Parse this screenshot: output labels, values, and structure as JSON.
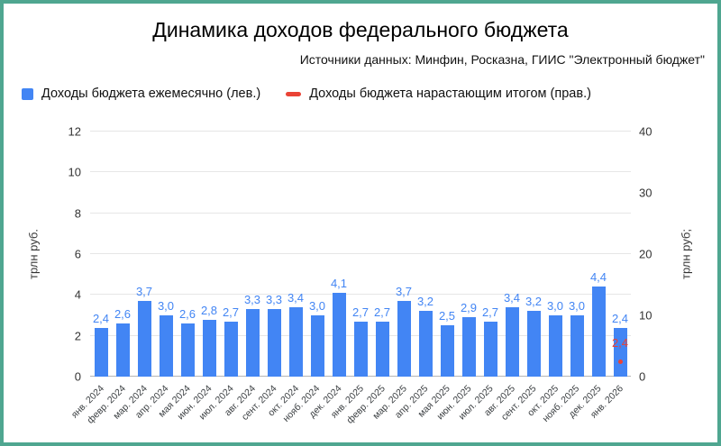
{
  "figure": {
    "border_color": "#4fa690",
    "background": "#ffffff"
  },
  "chart_data": {
    "type": "bar",
    "title": "Динамика доходов федерального бюджета",
    "subtitle": "Источники данных: Минфин, Росказна, ГИИС \"Электронный бюджет\"",
    "categories": [
      "янв. 2024",
      "февр. 2024",
      "мар. 2024",
      "апр. 2024",
      "мая 2024",
      "июн. 2024",
      "июл. 2024",
      "авг. 2024",
      "сент. 2024",
      "окт. 2024",
      "нояб. 2024",
      "дек. 2024",
      "янв. 2025",
      "февр. 2025",
      "мар. 2025",
      "апр. 2025",
      "мая 2025",
      "июн. 2025",
      "июл. 2025",
      "авг. 2025",
      "сент. 2025",
      "окт. 2025",
      "нояб. 2025",
      "дек. 2025",
      "янв. 2026"
    ],
    "series": [
      {
        "name": "Доходы бюджета ежемесячно (лев.)",
        "type": "bar",
        "axis": "left",
        "color": "#4285f4",
        "values": [
          2.4,
          2.6,
          3.7,
          3.0,
          2.6,
          2.8,
          2.7,
          3.3,
          3.3,
          3.4,
          3.0,
          4.1,
          2.7,
          2.7,
          3.7,
          3.2,
          2.5,
          2.9,
          2.7,
          3.4,
          3.2,
          3.0,
          3.0,
          4.4,
          2.4
        ]
      },
      {
        "name": "Доходы бюджета нарастающим итогом (прав.)",
        "type": "line",
        "axis": "right",
        "color": "#ea4335",
        "values": [
          null,
          null,
          null,
          null,
          null,
          null,
          null,
          null,
          null,
          null,
          null,
          null,
          null,
          null,
          null,
          null,
          null,
          null,
          null,
          null,
          null,
          null,
          null,
          null,
          2.4
        ]
      }
    ],
    "left_axis": {
      "label": "трлн руб.",
      "ticks": [
        0,
        2,
        4,
        6,
        8,
        10,
        12
      ],
      "min": 0,
      "max": 12
    },
    "right_axis": {
      "label": "трлн руб;",
      "ticks": [
        0,
        10,
        20,
        30,
        40
      ],
      "min": 0,
      "max": 40
    },
    "grid": true,
    "legend_position": "top-left",
    "value_label_decimal_separator": ","
  }
}
